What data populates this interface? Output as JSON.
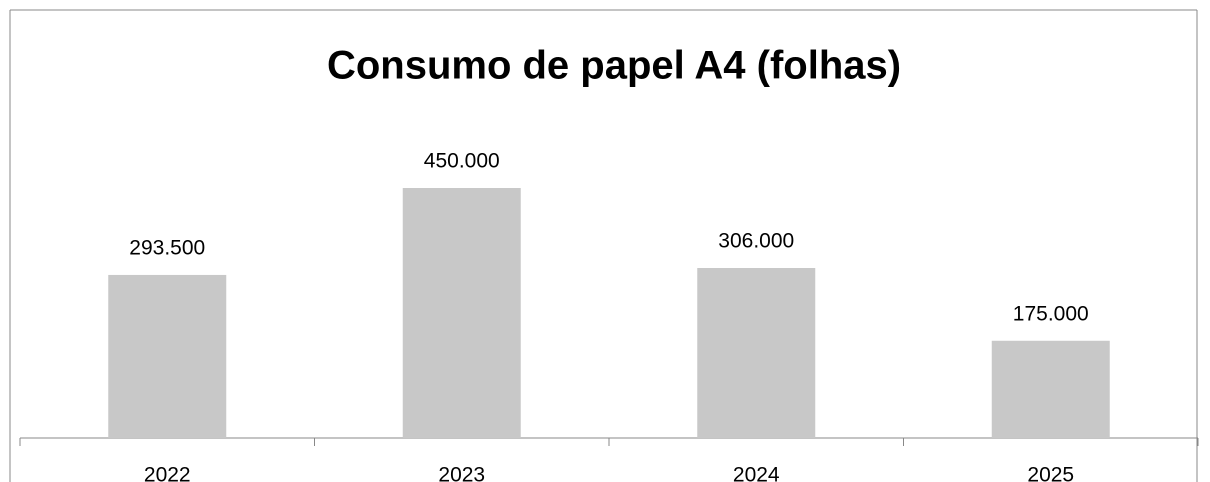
{
  "chart_data": {
    "type": "bar",
    "title": "Consumo de papel A4 (folhas)",
    "categories": [
      "2022",
      "2023",
      "2024",
      "2025"
    ],
    "values": [
      293500,
      450000,
      306000,
      175000
    ],
    "value_labels": [
      "293.500",
      "450.000",
      "306.000",
      "175.000"
    ],
    "color": "#c8c8c8"
  }
}
